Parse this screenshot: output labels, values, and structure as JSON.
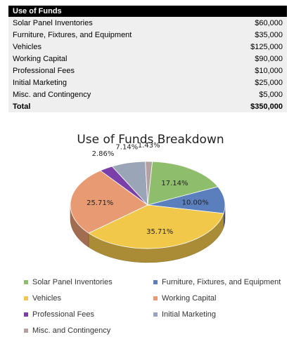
{
  "table": {
    "header": "Use of Funds",
    "rows": [
      {
        "label": "Solar Panel Inventories",
        "amount": "$60,000"
      },
      {
        "label": "Furniture, Fixtures, and Equipment",
        "amount": "$35,000"
      },
      {
        "label": "Vehicles",
        "amount": "$125,000"
      },
      {
        "label": "Working Capital",
        "amount": "$90,000"
      },
      {
        "label": "Professional Fees",
        "amount": "$10,000"
      },
      {
        "label": "Initial Marketing",
        "amount": "$25,000"
      },
      {
        "label": "Misc. and Contingency",
        "amount": "$5,000"
      }
    ],
    "total": {
      "label": "Total",
      "amount": "$350,000"
    }
  },
  "chart_data": {
    "type": "pie",
    "title": "Use of Funds Breakdown",
    "categories": [
      "Solar Panel Inventories",
      "Furniture, Fixtures, and Equipment",
      "Vehicles",
      "Working Capital",
      "Professional Fees",
      "Initial Marketing",
      "Misc. and Contingency"
    ],
    "values": [
      17.14,
      10.0,
      35.71,
      25.71,
      2.86,
      7.14,
      1.43
    ],
    "data_labels": [
      "17.14%",
      "10.00%",
      "35.71%",
      "25.71%",
      "2.86%",
      "7.14%",
      "1.43%"
    ],
    "colors": [
      "#8ebd6b",
      "#5b7fbd",
      "#f2c84b",
      "#e89a72",
      "#7a3fa8",
      "#9aa6b8",
      "#b3a0a0"
    ],
    "legend_position": "bottom"
  }
}
